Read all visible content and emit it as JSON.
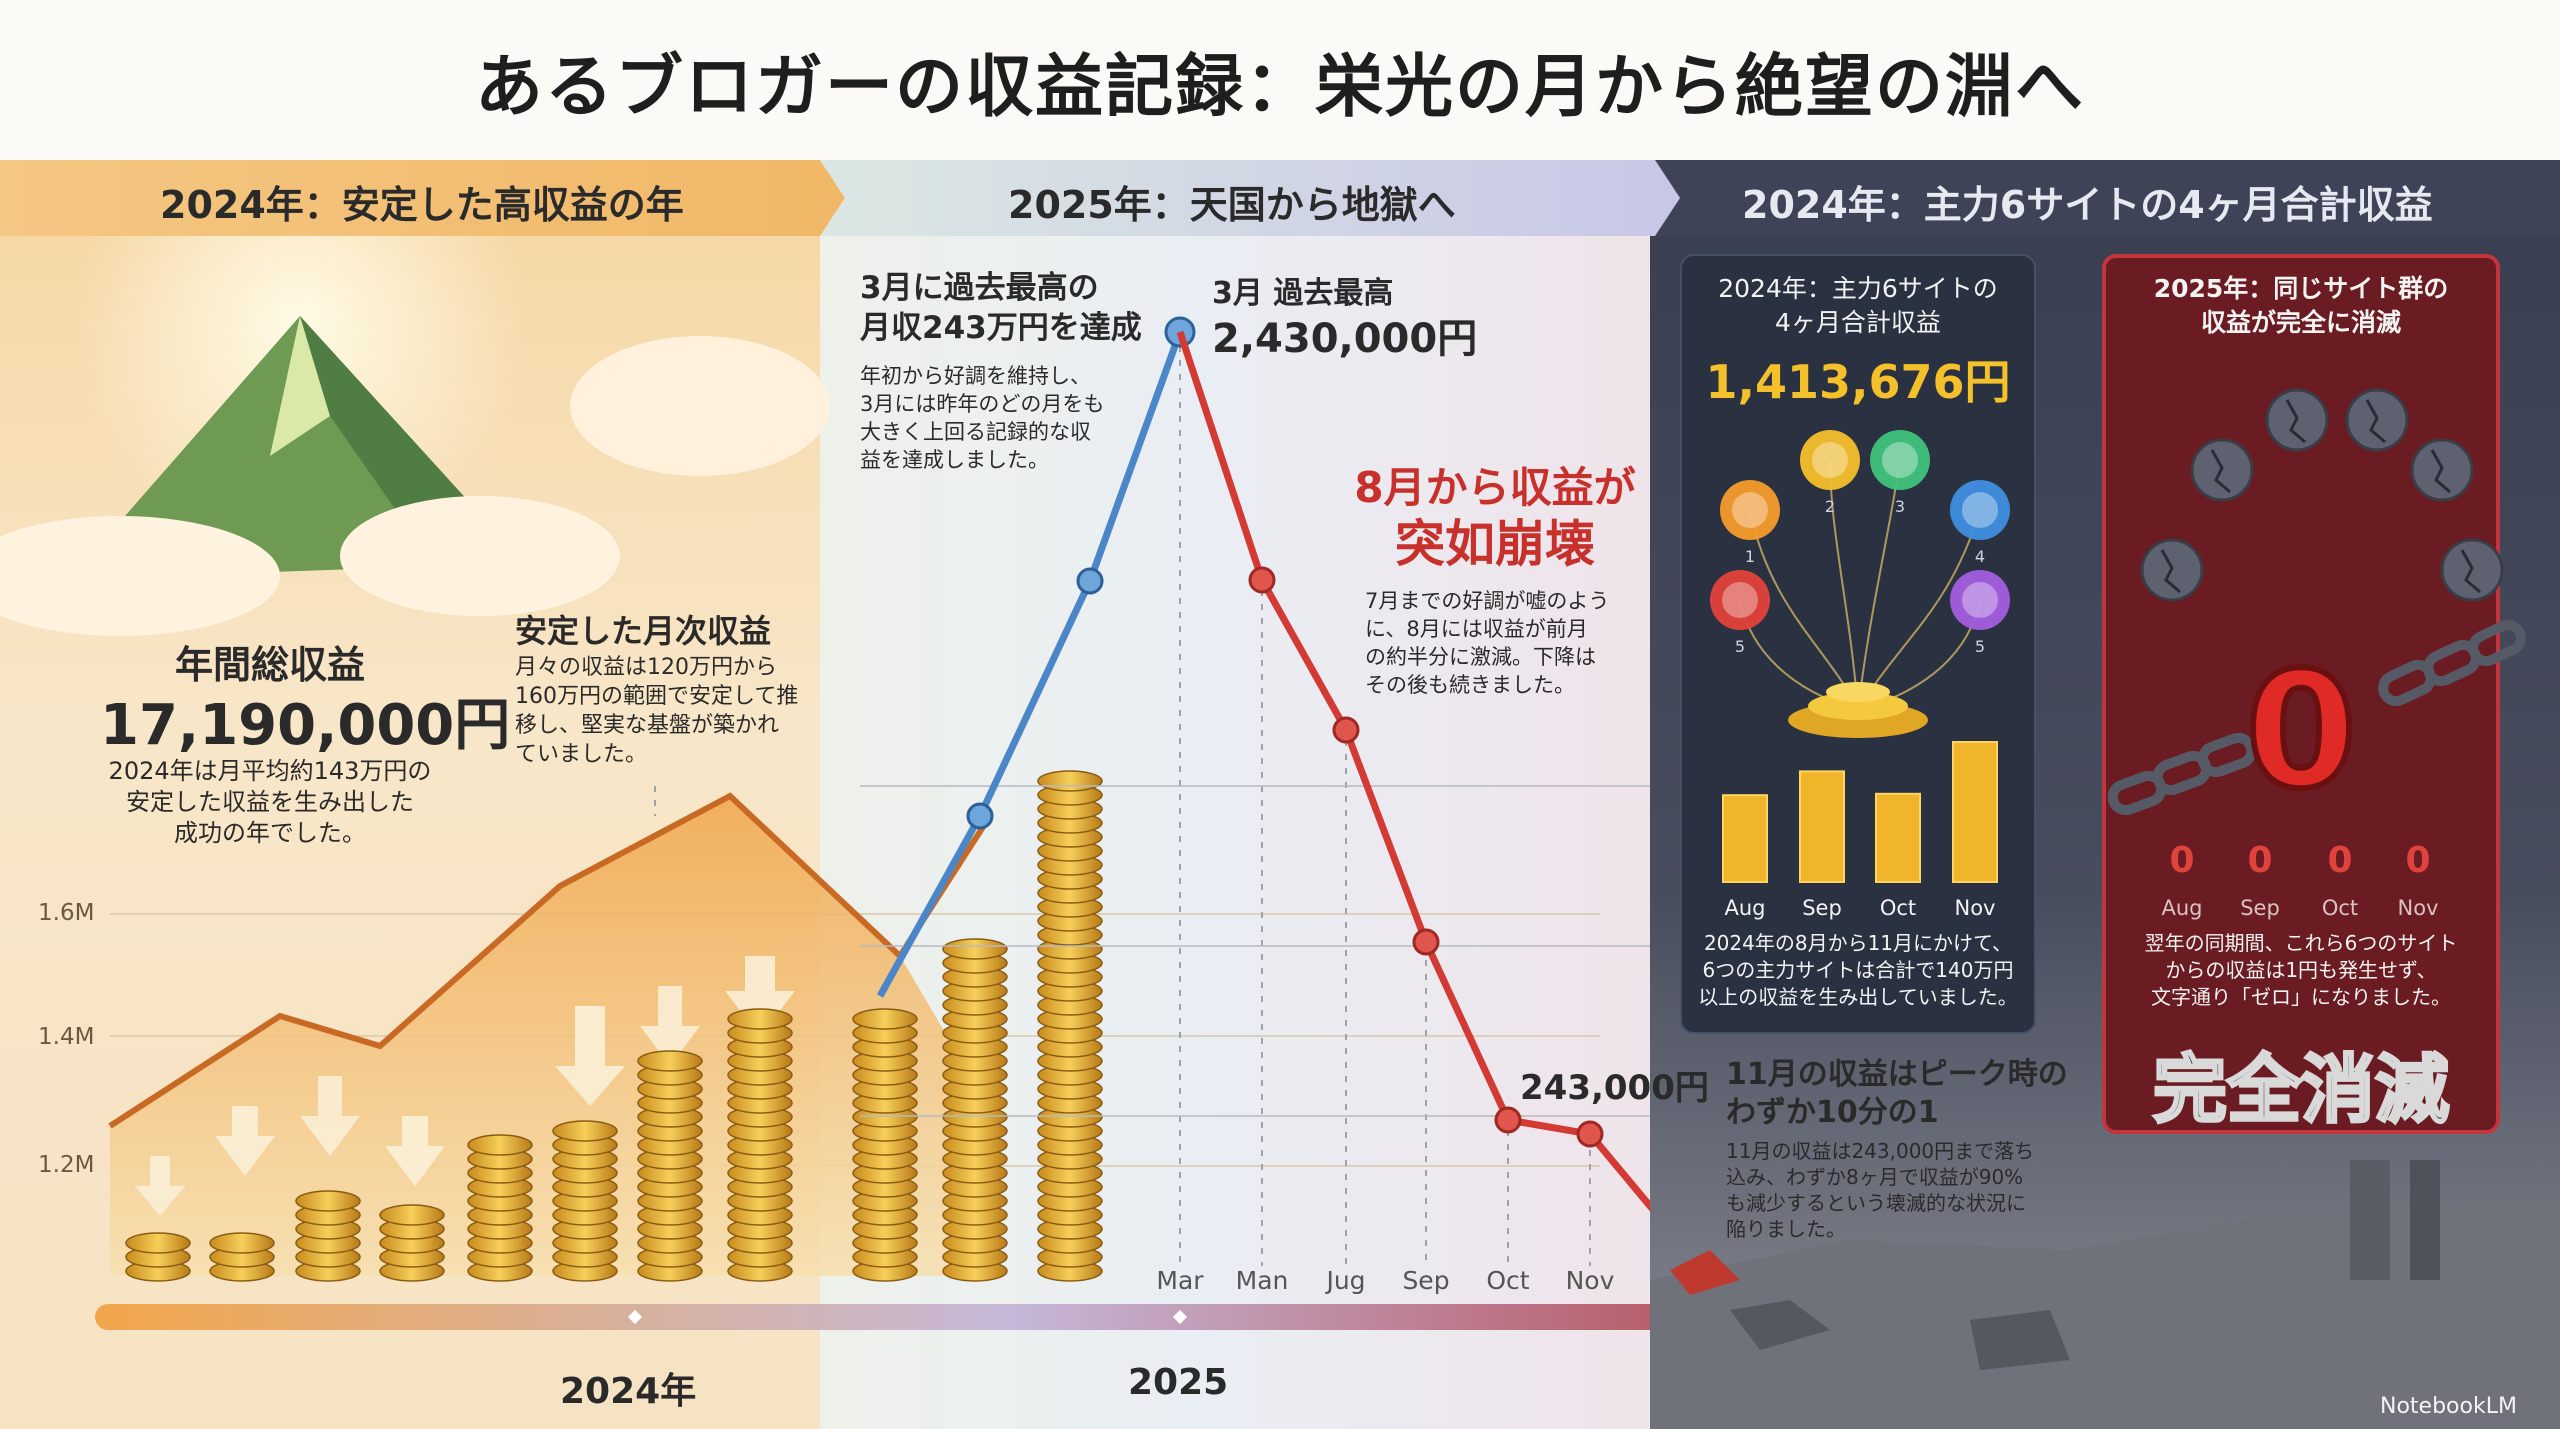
{
  "title": "あるブロガーの収益記録：栄光の月から絶望の淵へ",
  "sections": {
    "s1_label": "2024年：安定した高収益の年",
    "s2_label": "2025年：天国から地獄へ",
    "s3_label": "2024年：主力6サイトの4ヶ月合計収益"
  },
  "left": {
    "annual_title": "年間総収益",
    "annual_value": "17,190,000円",
    "annual_desc": [
      "2024年は月平均約143万円の",
      "安定した収益を生み出した",
      "成功の年でした。"
    ],
    "monthly_title": "安定した月次収益",
    "monthly_desc": [
      "月々の収益は120万円から",
      "160万円の範囲で安定して推",
      "移し、堅実な基盤が築かれ",
      "ていました。"
    ],
    "y_ticks": [
      "1.6M",
      "1.4M",
      "1.2M"
    ],
    "timeline_2024": "2024年",
    "timeline_2025": "2025"
  },
  "mid": {
    "record_title": [
      "3月に過去最高の",
      "月収243万円を達成"
    ],
    "record_desc": [
      "年初から好調を維持し、",
      "3月には昨年のどの月をも",
      "大きく上回る記録的な収",
      "益を達成しました。"
    ],
    "peak_label": "3月 過去最高",
    "peak_value": "2,430,000円",
    "collapse_title": [
      "8月から収益が",
      "突如崩壊"
    ],
    "collapse_desc": [
      "7月までの好調が嘘のよう",
      "に、8月には収益が前月",
      "の約半分に激減。下降は",
      "その後も続きました。"
    ],
    "nov_value": "243,000円",
    "nov_title": [
      "11月の収益はピーク時の",
      "わずか10分の1"
    ],
    "nov_desc": [
      "11月の収益は243,000円まで落ち",
      "込み、わずか8ヶ月で収益が90%",
      "も減少するという壊滅的な状況に",
      "陥りました。"
    ],
    "x_labels": [
      "Mar",
      "Man",
      "Jug",
      "Sep",
      "Oct",
      "Nov"
    ]
  },
  "panel_2024": {
    "title": [
      "2024年：主力6サイトの",
      "4ヶ月合計収益"
    ],
    "value": "1,413,676円",
    "months": [
      "Aug",
      "Sep",
      "Oct",
      "Nov"
    ],
    "desc": [
      "2024年の8月から11月にかけて、",
      "6つの主力サイトは合計で140万円",
      "以上の収益を生み出していました。"
    ],
    "orb_labels": [
      "1",
      "2",
      "3",
      "4",
      "5",
      "5"
    ]
  },
  "panel_2025": {
    "title": [
      "2025年：同じサイト群の",
      "収益が完全に消滅"
    ],
    "zero": "0",
    "zeros": [
      "0",
      "0",
      "0",
      "0"
    ],
    "months": [
      "Aug",
      "Sep",
      "Oct",
      "Nov"
    ],
    "desc": [
      "翌年の同期間、これら6つのサイト",
      "からの収益は1円も発生せず、",
      "文字通り「ゼロ」になりました。"
    ],
    "stamp": "完全消滅"
  },
  "footer": {
    "brand": "NotebookLM"
  },
  "chart_data": {
    "type": "line",
    "series": [
      {
        "x": [
          "Mar",
          "Man",
          "Jug",
          "Sep",
          "Oct",
          "Nov"
        ],
        "values": [
          2430000,
          1600000,
          1150000,
          700000,
          280000,
          243000
        ]
      }
    ],
    "ylabel": "",
    "xlabel": "",
    "grid": true
  },
  "panel_2024_chart": {
    "type": "bar",
    "categories": [
      "Aug",
      "Sep",
      "Oct",
      "Nov"
    ],
    "values": [
      0.62,
      0.79,
      0.63,
      1.0
    ]
  },
  "colors": {
    "accent_red": "#c7302b",
    "gold": "#f4c12a",
    "blue_line": "#4a86c8"
  }
}
